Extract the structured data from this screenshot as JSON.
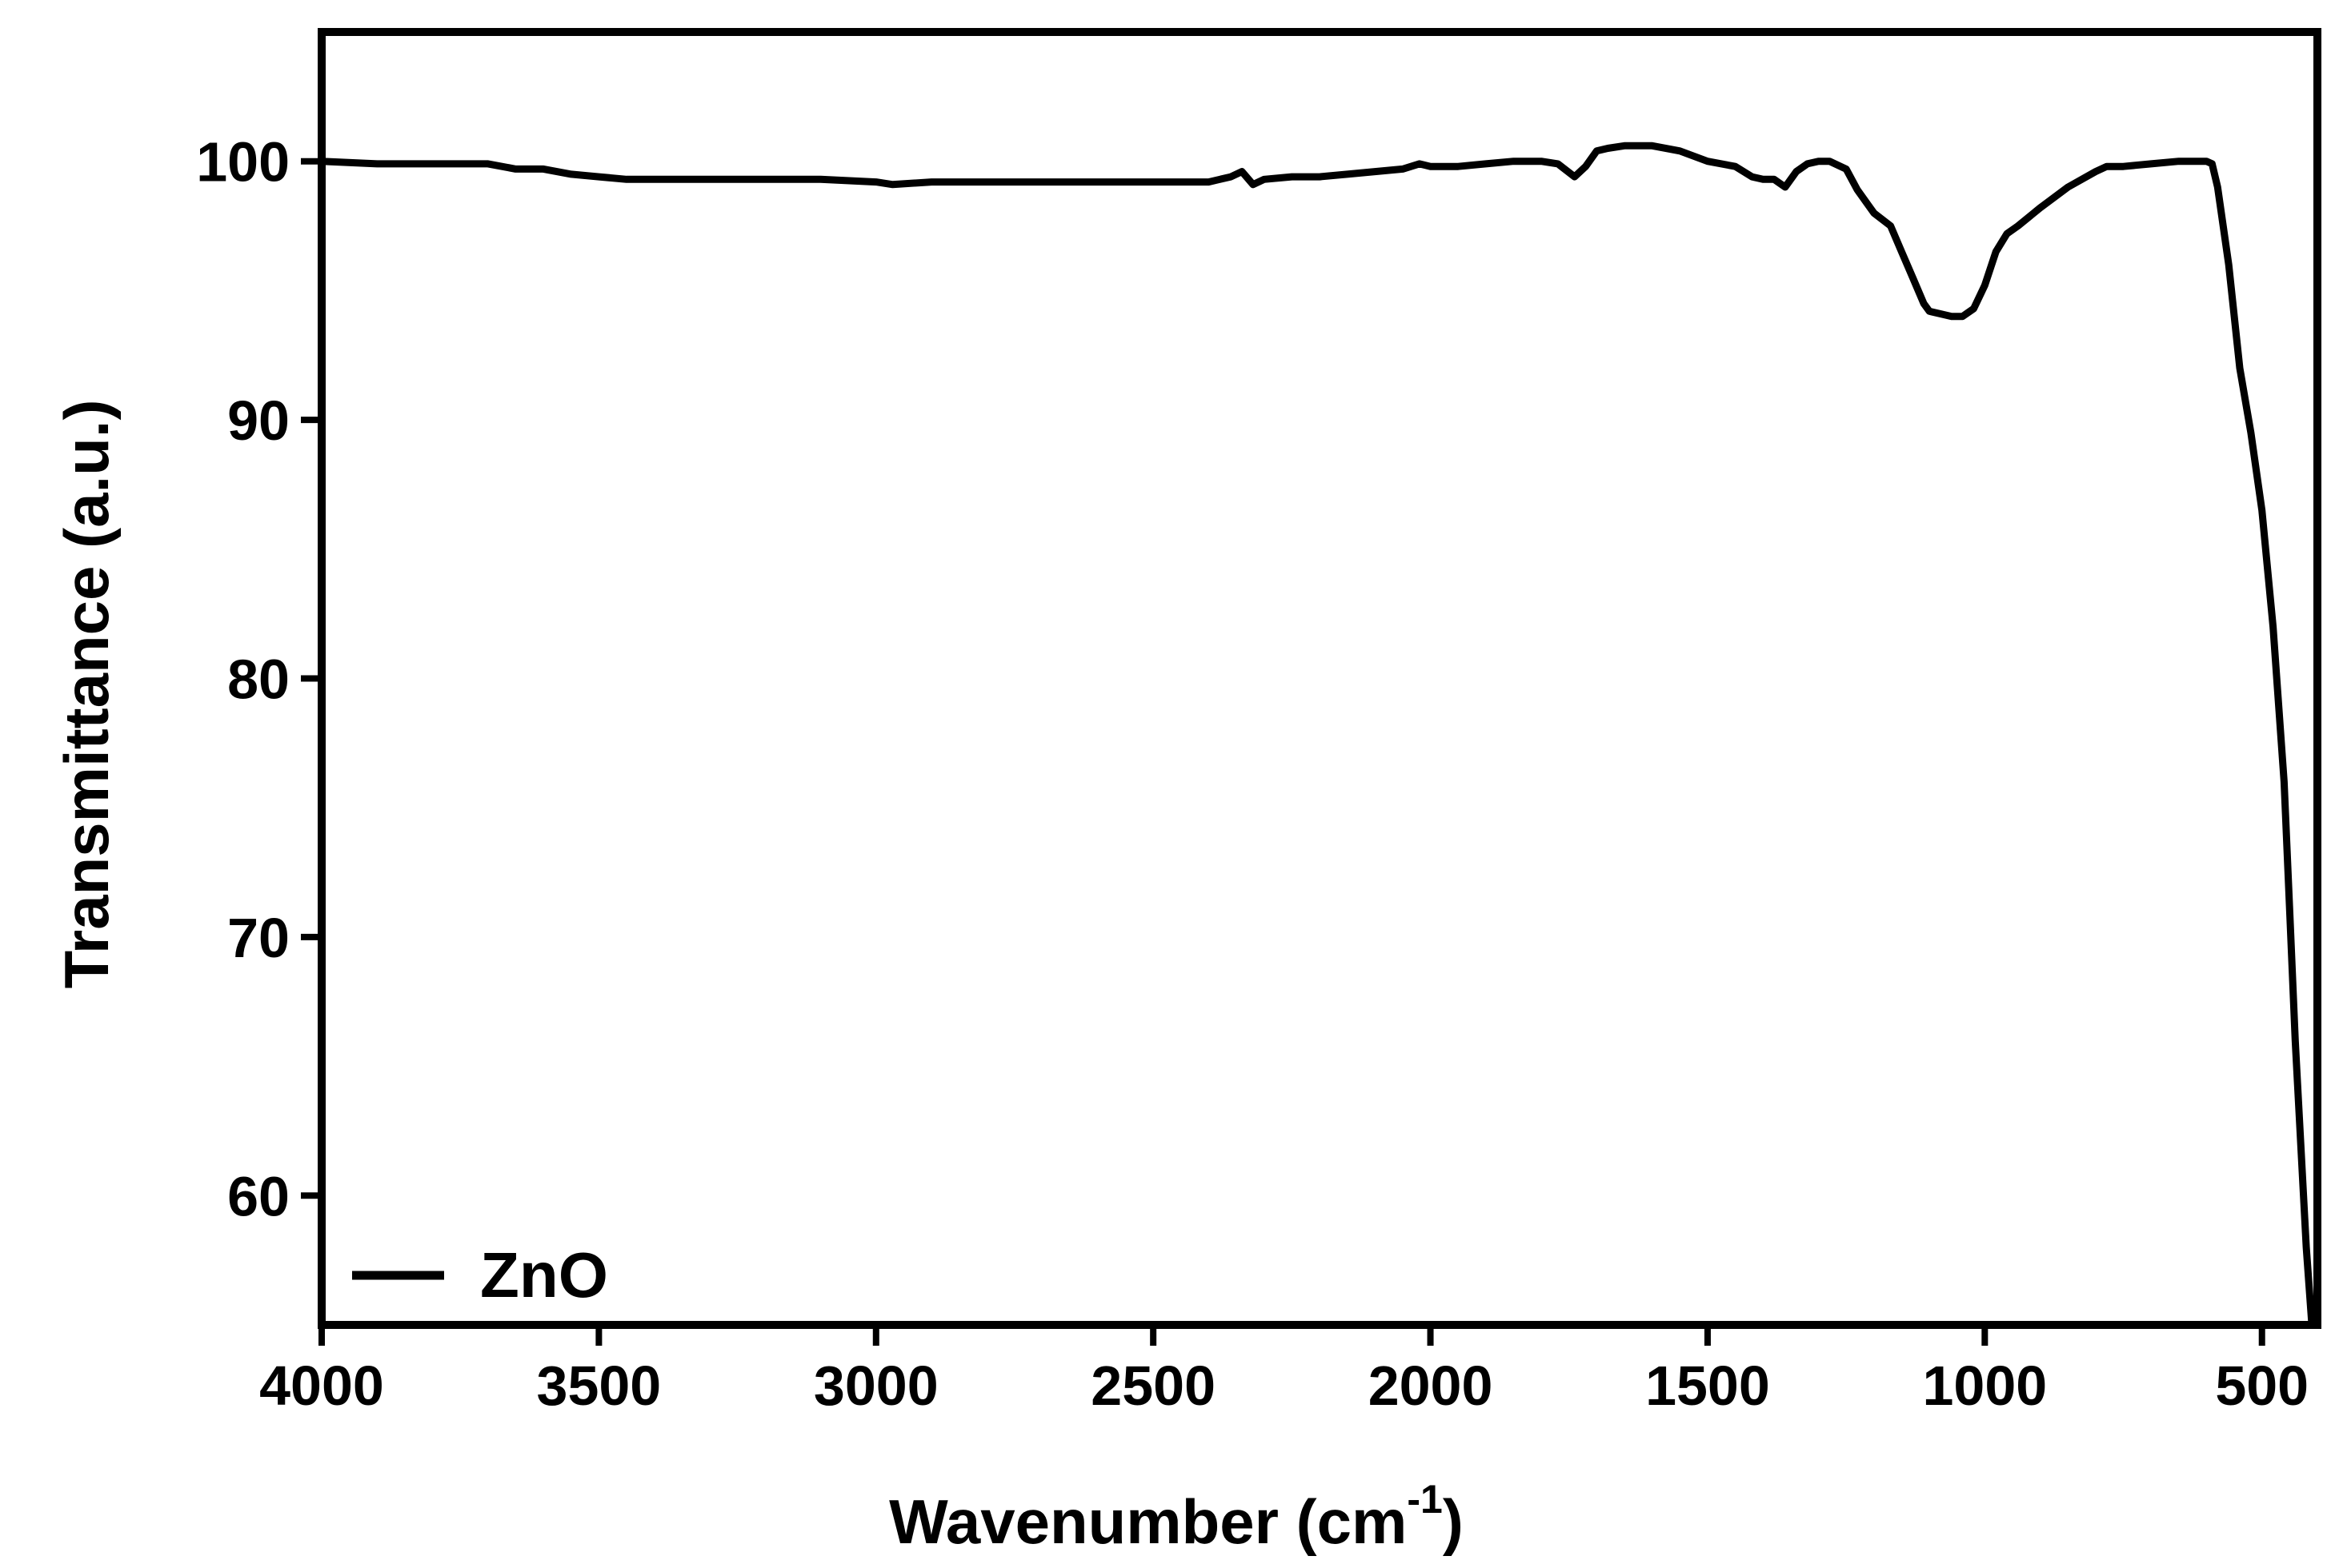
{
  "chart_data": {
    "type": "line",
    "xlabel": "Wavenumber (cm",
    "xlabel_superscript": "-1",
    "xlabel_suffix": ")",
    "ylabel": "Transmittance (a.u.)",
    "xlim": [
      4000,
      400
    ],
    "ylim": [
      55,
      105
    ],
    "x_reversed": true,
    "x_ticks": [
      4000,
      3500,
      3000,
      2500,
      2000,
      1500,
      1000,
      500
    ],
    "y_ticks": [
      60,
      70,
      80,
      90,
      100
    ],
    "legend_position": "bottom-left",
    "grid": false,
    "series": [
      {
        "name": "ZnO",
        "color": "#000000",
        "x": [
          4000,
          3900,
          3800,
          3700,
          3650,
          3600,
          3550,
          3500,
          3450,
          3400,
          3300,
          3200,
          3100,
          3000,
          2970,
          2900,
          2800,
          2700,
          2600,
          2500,
          2400,
          2360,
          2340,
          2320,
          2300,
          2250,
          2200,
          2150,
          2100,
          2050,
          2020,
          2000,
          1950,
          1900,
          1850,
          1800,
          1770,
          1740,
          1720,
          1700,
          1680,
          1650,
          1600,
          1550,
          1500,
          1450,
          1420,
          1400,
          1380,
          1360,
          1340,
          1320,
          1300,
          1280,
          1250,
          1230,
          1200,
          1170,
          1150,
          1130,
          1110,
          1100,
          1080,
          1060,
          1050,
          1040,
          1020,
          1000,
          980,
          960,
          940,
          900,
          850,
          800,
          780,
          750,
          700,
          650,
          600,
          590,
          580,
          560,
          550,
          540,
          520,
          500,
          480,
          460,
          450,
          440,
          430,
          420,
          415,
          410
        ],
        "y": [
          100,
          99.9,
          99.9,
          99.9,
          99.7,
          99.7,
          99.5,
          99.4,
          99.3,
          99.3,
          99.3,
          99.3,
          99.3,
          99.2,
          99.1,
          99.2,
          99.2,
          99.2,
          99.2,
          99.2,
          99.2,
          99.4,
          99.6,
          99.1,
          99.3,
          99.4,
          99.4,
          99.5,
          99.6,
          99.7,
          99.9,
          99.8,
          99.8,
          99.9,
          100,
          100,
          99.9,
          99.4,
          99.8,
          100.4,
          100.5,
          100.6,
          100.6,
          100.4,
          100.0,
          99.8,
          99.4,
          99.3,
          99.3,
          99.0,
          99.6,
          99.9,
          100.0,
          100.0,
          99.7,
          98.9,
          98.0,
          97.5,
          96.5,
          95.5,
          94.5,
          94.2,
          94.1,
          94.0,
          94.0,
          94.0,
          94.3,
          95.2,
          96.5,
          97.2,
          97.5,
          98.2,
          99.0,
          99.6,
          99.8,
          99.8,
          99.9,
          100.0,
          100.0,
          99.9,
          99.0,
          96.0,
          94.0,
          92.0,
          89.5,
          86.5,
          82.0,
          76.0,
          71.0,
          66.0,
          62.0,
          58.0,
          56.5,
          55.0
        ]
      }
    ]
  }
}
